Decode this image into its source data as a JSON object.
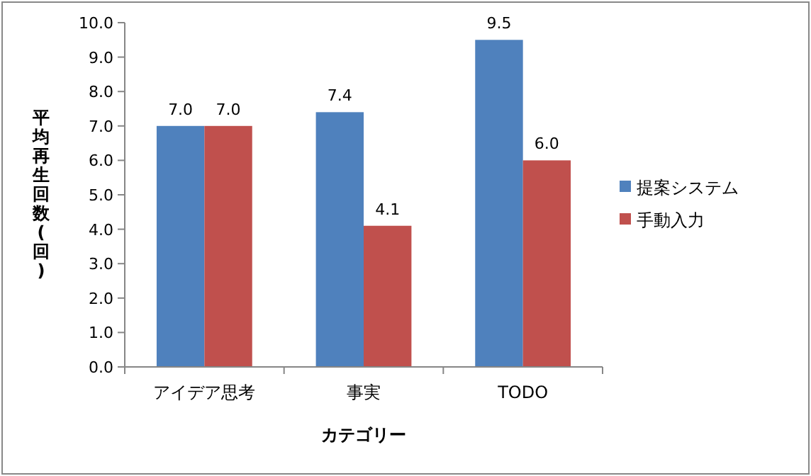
{
  "chart_data": {
    "type": "bar",
    "xlabel": "カテゴリー",
    "ylabel": "平均再生回数(回)",
    "categories": [
      "アイデア思考",
      "事実",
      "TODO"
    ],
    "series": [
      {
        "name": "提案システム",
        "color": "#4f81bd",
        "values": [
          7.0,
          7.4,
          9.5
        ],
        "value_labels": [
          "7.0",
          "7.4",
          "9.5"
        ]
      },
      {
        "name": "手動入力",
        "color": "#c0504d",
        "values": [
          7.0,
          4.1,
          6.0
        ],
        "value_labels": [
          "7.0",
          "4.1",
          "6.0"
        ]
      }
    ],
    "ylim": [
      0,
      10
    ],
    "yticks": [
      {
        "value": 0,
        "label": "0.0"
      },
      {
        "value": 1,
        "label": "1.0"
      },
      {
        "value": 2,
        "label": "2.0"
      },
      {
        "value": 3,
        "label": "3.0"
      },
      {
        "value": 4,
        "label": "4.0"
      },
      {
        "value": 5,
        "label": "5.0"
      },
      {
        "value": 6,
        "label": "6.0"
      },
      {
        "value": 7,
        "label": "7.0"
      },
      {
        "value": 8,
        "label": "8.0"
      },
      {
        "value": 9,
        "label": "9.0"
      },
      {
        "value": 10,
        "label": "10.0"
      }
    ],
    "legend": "right"
  }
}
